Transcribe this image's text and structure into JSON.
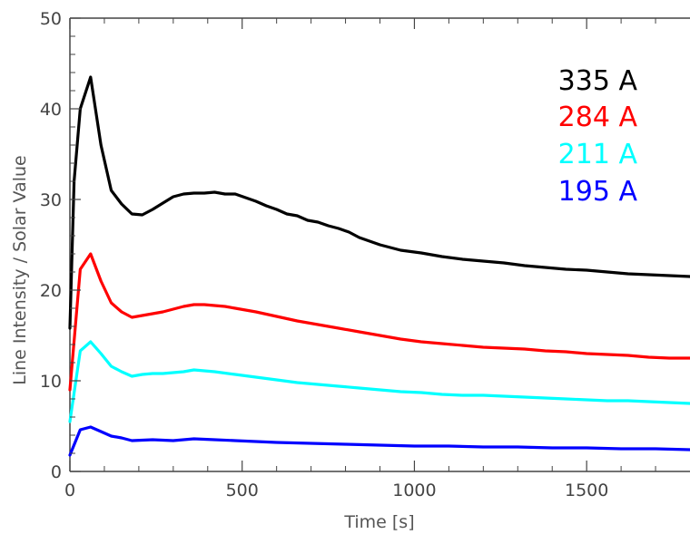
{
  "chart_data": {
    "type": "line",
    "title": "",
    "xlabel": "Time [s]",
    "ylabel": "Line Intensity / Solar Value",
    "xlim": [
      0,
      1800
    ],
    "ylim": [
      0,
      50
    ],
    "xticks": [
      0,
      500,
      1000,
      1500
    ],
    "yticks": [
      0,
      10,
      20,
      30,
      40,
      50
    ],
    "xtick_labels": [
      "0",
      "500",
      "1000",
      "1500"
    ],
    "ytick_labels": [
      "0",
      "10",
      "20",
      "30",
      "40",
      "50"
    ],
    "grid": false,
    "legend_placement": "top-right",
    "series": [
      {
        "name": "335 A",
        "color": "#000000",
        "x": [
          0,
          12,
          30,
          60,
          90,
          120,
          150,
          180,
          210,
          240,
          270,
          300,
          330,
          360,
          390,
          420,
          450,
          480,
          510,
          540,
          570,
          600,
          630,
          660,
          690,
          720,
          750,
          780,
          810,
          840,
          870,
          900,
          960,
          1020,
          1080,
          1140,
          1200,
          1260,
          1320,
          1380,
          1440,
          1500,
          1560,
          1620,
          1680,
          1740,
          1800
        ],
        "y": [
          15.8,
          32,
          40,
          43.5,
          36,
          31,
          29.5,
          28.4,
          28.3,
          28.9,
          29.6,
          30.3,
          30.6,
          30.7,
          30.7,
          30.8,
          30.6,
          30.6,
          30.2,
          29.8,
          29.3,
          28.9,
          28.4,
          28.2,
          27.7,
          27.5,
          27.1,
          26.8,
          26.4,
          25.8,
          25.4,
          25.0,
          24.4,
          24.1,
          23.7,
          23.4,
          23.2,
          23.0,
          22.7,
          22.5,
          22.3,
          22.2,
          22.0,
          21.8,
          21.7,
          21.6,
          21.5
        ]
      },
      {
        "name": "284 A",
        "color": "#ff0000",
        "x": [
          0,
          30,
          60,
          90,
          120,
          150,
          180,
          210,
          240,
          270,
          300,
          330,
          360,
          390,
          420,
          450,
          480,
          540,
          600,
          660,
          720,
          780,
          840,
          900,
          960,
          1020,
          1080,
          1140,
          1200,
          1260,
          1320,
          1380,
          1440,
          1500,
          1560,
          1620,
          1680,
          1740,
          1800
        ],
        "y": [
          9.0,
          22.3,
          24.0,
          21.0,
          18.6,
          17.6,
          17.0,
          17.2,
          17.4,
          17.6,
          17.9,
          18.2,
          18.4,
          18.4,
          18.3,
          18.2,
          18.0,
          17.6,
          17.1,
          16.6,
          16.2,
          15.8,
          15.4,
          15.0,
          14.6,
          14.3,
          14.1,
          13.9,
          13.7,
          13.6,
          13.5,
          13.3,
          13.2,
          13.0,
          12.9,
          12.8,
          12.6,
          12.5,
          12.5
        ]
      },
      {
        "name": "211 A",
        "color": "#00ffff",
        "x": [
          0,
          30,
          60,
          90,
          120,
          150,
          180,
          210,
          240,
          270,
          300,
          330,
          360,
          390,
          420,
          480,
          540,
          600,
          660,
          720,
          780,
          840,
          900,
          960,
          1020,
          1080,
          1140,
          1200,
          1260,
          1320,
          1380,
          1440,
          1500,
          1560,
          1620,
          1680,
          1740,
          1800
        ],
        "y": [
          5.5,
          13.3,
          14.3,
          13.0,
          11.6,
          11.0,
          10.5,
          10.7,
          10.8,
          10.8,
          10.9,
          11.0,
          11.2,
          11.1,
          11.0,
          10.7,
          10.4,
          10.1,
          9.8,
          9.6,
          9.4,
          9.2,
          9.0,
          8.8,
          8.7,
          8.5,
          8.4,
          8.4,
          8.3,
          8.2,
          8.1,
          8.0,
          7.9,
          7.8,
          7.8,
          7.7,
          7.6,
          7.5
        ]
      },
      {
        "name": "195 A",
        "color": "#0000ff",
        "x": [
          0,
          30,
          60,
          90,
          120,
          150,
          180,
          240,
          300,
          360,
          420,
          480,
          540,
          600,
          700,
          800,
          900,
          1000,
          1100,
          1200,
          1300,
          1400,
          1500,
          1600,
          1700,
          1800
        ],
        "y": [
          1.8,
          4.6,
          4.9,
          4.4,
          3.9,
          3.7,
          3.4,
          3.5,
          3.4,
          3.6,
          3.5,
          3.4,
          3.3,
          3.2,
          3.1,
          3.0,
          2.9,
          2.8,
          2.8,
          2.7,
          2.7,
          2.6,
          2.6,
          2.5,
          2.5,
          2.4
        ]
      }
    ]
  }
}
